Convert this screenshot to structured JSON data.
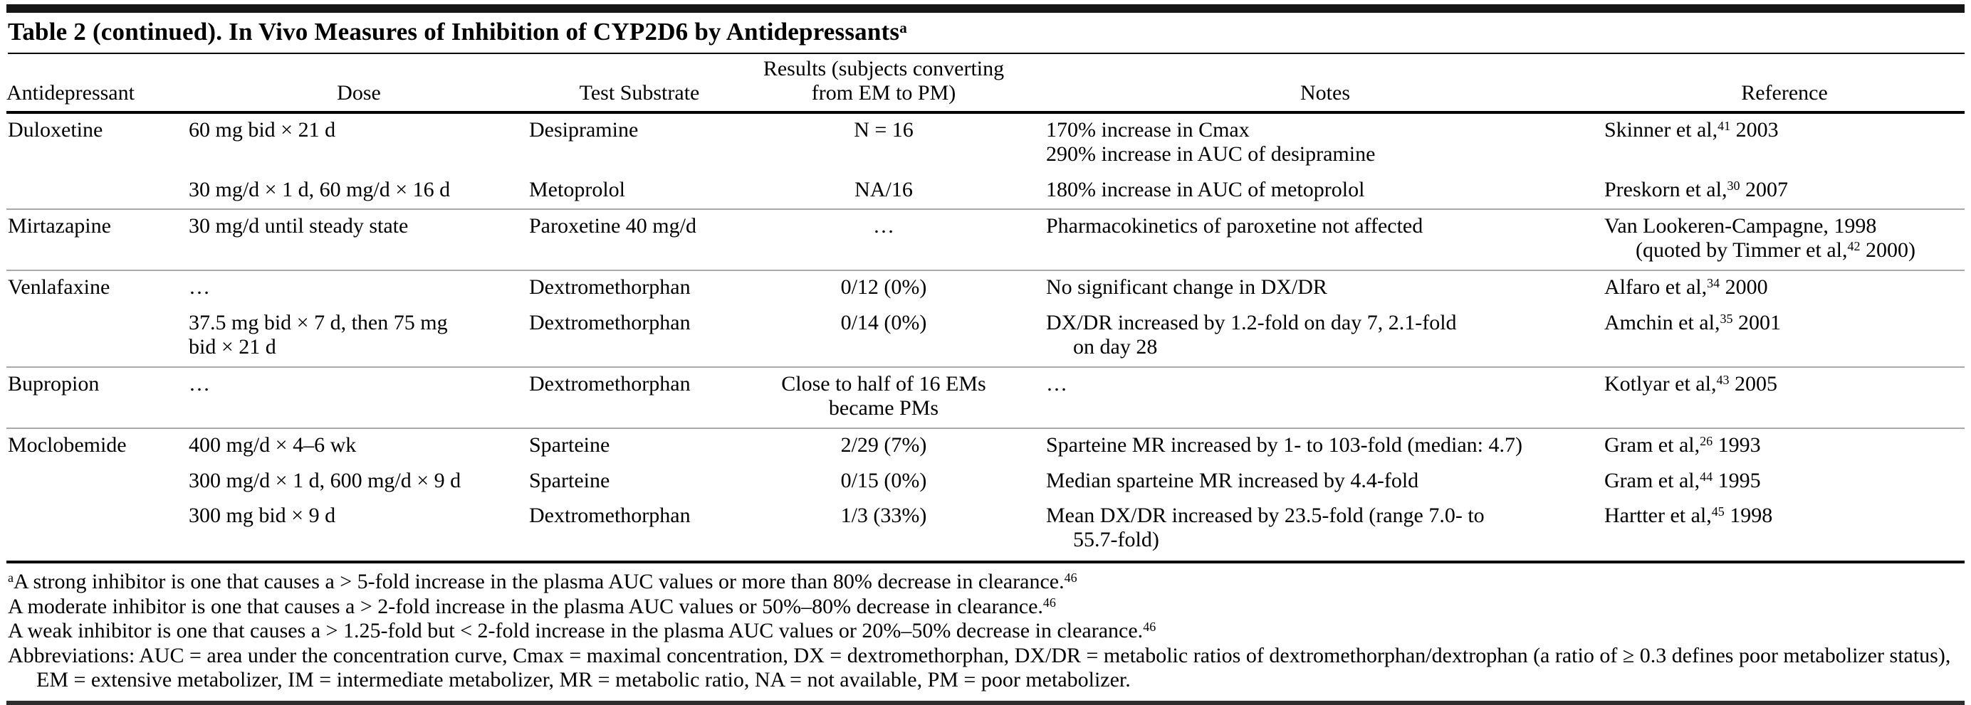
{
  "title": "Table 2 (continued). In Vivo Measures of Inhibition of CYP2D6 by Antidepressants{a}",
  "colors": {
    "background": "#ffffff",
    "text": "#000000",
    "rule": "#000000",
    "group_divider": "#a9a9a9"
  },
  "table": {
    "columns": [
      {
        "label": "Antidepressant",
        "align": "left"
      },
      {
        "label": "Dose",
        "align": "center"
      },
      {
        "label": "Test Substrate",
        "align": "center"
      },
      {
        "label": "Results (subjects converting from EM to PM)",
        "align": "center"
      },
      {
        "label": "Notes",
        "align": "center"
      },
      {
        "label": "Reference",
        "align": "center"
      }
    ],
    "groups": [
      {
        "drug": "Duloxetine",
        "rows": [
          {
            "dose": [
              "60 mg bid × 21 d"
            ],
            "substrate": "Desipramine",
            "results": "N = 16",
            "notes": [
              [
                "170% increase in Cmax"
              ],
              [
                "290% increase in AUC of desipramine"
              ]
            ],
            "reference": [
              "Skinner et al,{41} 2003"
            ]
          },
          {
            "dose": [
              "30 mg/d × 1 d, 60 mg/d × 16 d"
            ],
            "substrate": "Metoprolol",
            "results": "NA/16",
            "notes": [
              [
                "180% increase in AUC of metoprolol"
              ]
            ],
            "reference": [
              "Preskorn et al,{30} 2007"
            ]
          }
        ]
      },
      {
        "drug": "Mirtazapine",
        "rows": [
          {
            "dose": [
              "30 mg/d until steady state"
            ],
            "substrate": "Paroxetine 40 mg/d",
            "results": "…",
            "notes": [
              [
                "Pharmacokinetics of paroxetine not affected"
              ]
            ],
            "reference": [
              "Van Lookeren-Campagne, 1998",
              "(quoted by Timmer et al,{42} 2000)"
            ]
          }
        ]
      },
      {
        "drug": "Venlafaxine",
        "rows": [
          {
            "dose": [
              "…"
            ],
            "substrate": "Dextromethorphan",
            "results": "0/12 (0%)",
            "notes": [
              [
                "No significant change in DX/DR"
              ]
            ],
            "reference": [
              "Alfaro et al,{34} 2000"
            ]
          },
          {
            "dose": [
              "37.5 mg bid × 7 d, then 75 mg",
              "bid × 21 d"
            ],
            "substrate": "Dextromethorphan",
            "results": "0/14 (0%)",
            "notes": [
              [
                "DX/DR increased by 1.2-fold on day 7, 2.1-fold",
                "on day 28"
              ]
            ],
            "reference": [
              "Amchin et al,{35} 2001"
            ]
          }
        ]
      },
      {
        "drug": "Bupropion",
        "rows": [
          {
            "dose": [
              "…"
            ],
            "substrate": "Dextromethorphan",
            "results": "Close to half of 16 EMs became PMs",
            "notes": [
              [
                "…"
              ]
            ],
            "reference": [
              "Kotlyar et al,{43} 2005"
            ]
          }
        ]
      },
      {
        "drug": "Moclobemide",
        "rows": [
          {
            "dose": [
              "400 mg/d × 4–6 wk"
            ],
            "substrate": "Sparteine",
            "results": "2/29 (7%)",
            "notes": [
              [
                "Sparteine MR increased by 1- to 103-fold (median: 4.7)"
              ]
            ],
            "reference": [
              "Gram et al,{26} 1993"
            ]
          },
          {
            "dose": [
              "300 mg/d × 1 d, 600 mg/d × 9 d"
            ],
            "substrate": "Sparteine",
            "results": "0/15 (0%)",
            "notes": [
              [
                "Median sparteine MR increased by 4.4-fold"
              ]
            ],
            "reference": [
              "Gram et al,{44} 1995"
            ]
          },
          {
            "dose": [
              "300 mg bid × 9 d"
            ],
            "substrate": "Dextromethorphan",
            "results": "1/3 (33%)",
            "notes": [
              [
                "Mean DX/DR increased by 23.5-fold (range 7.0- to",
                "55.7-fold)"
              ]
            ],
            "reference": [
              "Hartter et al,{45} 1998"
            ]
          }
        ]
      }
    ]
  },
  "footnotes": [
    "{a}A strong inhibitor is one that causes a > 5-fold increase in the plasma AUC values or more than 80% decrease in clearance.{46}",
    "A moderate inhibitor is one that causes a > 2-fold increase in the plasma AUC values or 50%–80% decrease in clearance.{46}",
    "A weak inhibitor is one that causes a > 1.25-fold but < 2-fold increase in the plasma AUC values or 20%–50% decrease in clearance.{46}",
    "Abbreviations: AUC = area under the concentration curve, Cmax = maximal concentration, DX = dextromethorphan, DX/DR = metabolic ratios of dextromethorphan/dextrophan (a ratio of ≥ 0.3 defines poor metabolizer status), EM = extensive metabolizer, IM = intermediate metabolizer, MR = metabolic ratio, NA = not available, PM = poor metabolizer."
  ]
}
